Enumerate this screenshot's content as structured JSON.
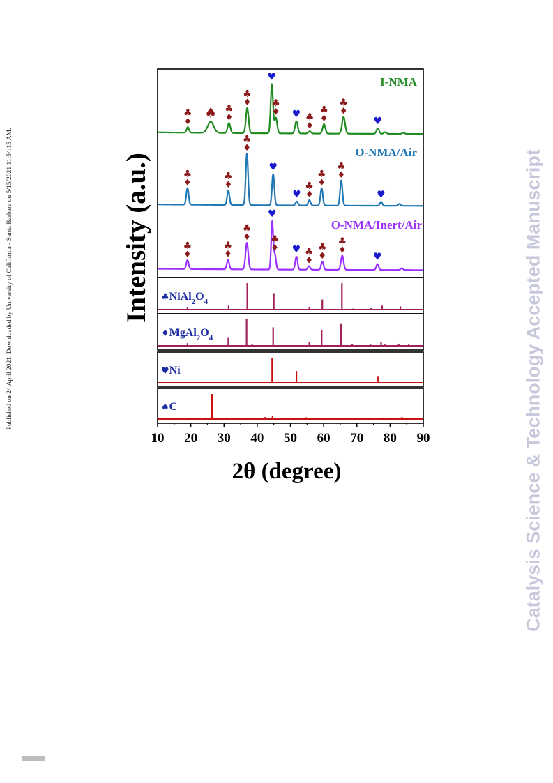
{
  "publish_note": "Published on 24 April 2021. Downloaded by University of California - Santa Barbara on 5/15/2021 11:54:15 AM.",
  "watermark": "Catalysis Science & Technology Accepted Manuscript",
  "colors": {
    "I-NMA": "#228b22",
    "O-NMA/Air": "#1f77b4",
    "O-NMA/Inert/Air": "#9b30ff",
    "reference_bars": "#a0205a",
    "reference_red": "#cc1111",
    "marker_spinel": "#8b1a1a",
    "marker_ni": "#1a1acc",
    "label_blue": "#1a2aa0"
  },
  "chart_data": {
    "type": "line",
    "xlabel": "2θ (degree)",
    "ylabel": "Intensity (a.u.)",
    "xlim": [
      10,
      90
    ],
    "xticks": [
      10,
      20,
      30,
      40,
      50,
      60,
      70,
      80,
      90
    ],
    "series": [
      {
        "name": "I-NMA",
        "color_key": "I-NMA",
        "baseline": 0.04,
        "peaks": [
          {
            "x": 19.1,
            "h": 0.1,
            "w": 0.35
          },
          {
            "x": 26.0,
            "h": 0.2,
            "w": 0.9
          },
          {
            "x": 31.5,
            "h": 0.18,
            "w": 0.4
          },
          {
            "x": 37.0,
            "h": 0.45,
            "w": 0.4
          },
          {
            "x": 44.4,
            "h": 0.88,
            "w": 0.35
          },
          {
            "x": 45.6,
            "h": 0.28,
            "w": 0.4
          },
          {
            "x": 51.8,
            "h": 0.22,
            "w": 0.4
          },
          {
            "x": 55.8,
            "h": 0.04,
            "w": 0.4
          },
          {
            "x": 60.1,
            "h": 0.17,
            "w": 0.4
          },
          {
            "x": 66.0,
            "h": 0.3,
            "w": 0.45
          },
          {
            "x": 76.3,
            "h": 0.1,
            "w": 0.4
          },
          {
            "x": 78.5,
            "h": 0.03,
            "w": 0.4
          },
          {
            "x": 84.0,
            "h": 0.02,
            "w": 0.4
          }
        ],
        "markers": [
          {
            "x": 19.1,
            "symbol": "club-diamond"
          },
          {
            "x": 26.0,
            "symbol": "spade"
          },
          {
            "x": 31.5,
            "symbol": "club-diamond"
          },
          {
            "x": 37.0,
            "symbol": "club-diamond"
          },
          {
            "x": 44.4,
            "symbol": "heart"
          },
          {
            "x": 45.6,
            "symbol": "club-diamond"
          },
          {
            "x": 51.8,
            "symbol": "heart"
          },
          {
            "x": 55.8,
            "symbol": "club-diamond"
          },
          {
            "x": 60.1,
            "symbol": "club-diamond"
          },
          {
            "x": 66.0,
            "symbol": "club-diamond"
          },
          {
            "x": 76.3,
            "symbol": "heart"
          }
        ]
      },
      {
        "name": "O-NMA/Air",
        "color_key": "O-NMA/Air",
        "baseline": 0.03,
        "peaks": [
          {
            "x": 19.0,
            "h": 0.25,
            "w": 0.35
          },
          {
            "x": 31.3,
            "h": 0.22,
            "w": 0.35
          },
          {
            "x": 36.9,
            "h": 0.78,
            "w": 0.35
          },
          {
            "x": 44.8,
            "h": 0.47,
            "w": 0.35
          },
          {
            "x": 51.9,
            "h": 0.06,
            "w": 0.35
          },
          {
            "x": 55.7,
            "h": 0.08,
            "w": 0.35
          },
          {
            "x": 59.4,
            "h": 0.26,
            "w": 0.35
          },
          {
            "x": 65.3,
            "h": 0.38,
            "w": 0.35
          },
          {
            "x": 77.3,
            "h": 0.06,
            "w": 0.35
          },
          {
            "x": 82.8,
            "h": 0.03,
            "w": 0.35
          }
        ],
        "markers": [
          {
            "x": 19.0,
            "symbol": "club-diamond"
          },
          {
            "x": 31.3,
            "symbol": "club-diamond"
          },
          {
            "x": 36.9,
            "symbol": "club-diamond"
          },
          {
            "x": 44.8,
            "symbol": "heart"
          },
          {
            "x": 51.9,
            "symbol": "heart"
          },
          {
            "x": 55.7,
            "symbol": "club-diamond"
          },
          {
            "x": 59.4,
            "symbol": "club-diamond"
          },
          {
            "x": 65.3,
            "symbol": "club-diamond"
          },
          {
            "x": 77.3,
            "symbol": "heart"
          }
        ]
      },
      {
        "name": "O-NMA/Inert/Air",
        "color_key": "O-NMA/Inert/Air",
        "baseline": 0.03,
        "peaks": [
          {
            "x": 19.0,
            "h": 0.15,
            "w": 0.35
          },
          {
            "x": 31.2,
            "h": 0.16,
            "w": 0.35
          },
          {
            "x": 36.9,
            "h": 0.45,
            "w": 0.4
          },
          {
            "x": 44.5,
            "h": 0.8,
            "w": 0.3
          },
          {
            "x": 45.3,
            "h": 0.25,
            "w": 0.35
          },
          {
            "x": 51.8,
            "h": 0.22,
            "w": 0.35
          },
          {
            "x": 55.6,
            "h": 0.06,
            "w": 0.35
          },
          {
            "x": 59.6,
            "h": 0.14,
            "w": 0.35
          },
          {
            "x": 65.6,
            "h": 0.24,
            "w": 0.4
          },
          {
            "x": 76.2,
            "h": 0.1,
            "w": 0.35
          },
          {
            "x": 83.5,
            "h": 0.03,
            "w": 0.35
          }
        ],
        "markers": [
          {
            "x": 19.0,
            "symbol": "club-diamond"
          },
          {
            "x": 31.2,
            "symbol": "club-diamond"
          },
          {
            "x": 36.9,
            "symbol": "club-diamond"
          },
          {
            "x": 44.5,
            "symbol": "heart"
          },
          {
            "x": 45.3,
            "symbol": "club-diamond"
          },
          {
            "x": 51.8,
            "symbol": "heart"
          },
          {
            "x": 55.6,
            "symbol": "club-diamond"
          },
          {
            "x": 59.6,
            "symbol": "club-diamond"
          },
          {
            "x": 65.6,
            "symbol": "club-diamond"
          },
          {
            "x": 76.2,
            "symbol": "heart"
          }
        ]
      }
    ],
    "references": [
      {
        "symbol": "club",
        "label_parts": [
          "NiAl",
          "2",
          "O",
          "4"
        ],
        "color_key": "reference_bars",
        "lines": [
          {
            "x": 19.0,
            "h": 0.08
          },
          {
            "x": 31.4,
            "h": 0.15
          },
          {
            "x": 37.0,
            "h": 1.0
          },
          {
            "x": 45.0,
            "h": 0.62
          },
          {
            "x": 55.7,
            "h": 0.1
          },
          {
            "x": 59.6,
            "h": 0.38
          },
          {
            "x": 65.5,
            "h": 1.0
          },
          {
            "x": 68.9,
            "h": 0.04
          },
          {
            "x": 74.3,
            "h": 0.05
          },
          {
            "x": 77.6,
            "h": 0.15
          },
          {
            "x": 83.1,
            "h": 0.12
          }
        ]
      },
      {
        "symbol": "diamond",
        "label_parts": [
          "MgAl",
          "2",
          "O",
          "4"
        ],
        "color_key": "reference_bars",
        "lines": [
          {
            "x": 19.0,
            "h": 0.1
          },
          {
            "x": 31.3,
            "h": 0.3
          },
          {
            "x": 36.8,
            "h": 1.0
          },
          {
            "x": 38.5,
            "h": 0.05
          },
          {
            "x": 44.8,
            "h": 0.7
          },
          {
            "x": 55.7,
            "h": 0.14
          },
          {
            "x": 59.4,
            "h": 0.6
          },
          {
            "x": 65.2,
            "h": 0.85
          },
          {
            "x": 68.6,
            "h": 0.06
          },
          {
            "x": 74.1,
            "h": 0.05
          },
          {
            "x": 77.3,
            "h": 0.14
          },
          {
            "x": 78.5,
            "h": 0.05
          },
          {
            "x": 82.6,
            "h": 0.08
          },
          {
            "x": 85.6,
            "h": 0.05
          }
        ]
      },
      {
        "symbol": "heart",
        "label_parts": [
          "Ni"
        ],
        "color_key": "reference_red",
        "lines": [
          {
            "x": 44.5,
            "h": 1.0
          },
          {
            "x": 51.8,
            "h": 0.47
          },
          {
            "x": 76.4,
            "h": 0.27
          }
        ]
      },
      {
        "symbol": "spade",
        "label_parts": [
          "C"
        ],
        "color_key": "reference_red",
        "lines": [
          {
            "x": 26.4,
            "h": 1.0
          },
          {
            "x": 42.4,
            "h": 0.08
          },
          {
            "x": 44.6,
            "h": 0.12
          },
          {
            "x": 50.7,
            "h": 0.04
          },
          {
            "x": 54.7,
            "h": 0.07
          },
          {
            "x": 59.9,
            "h": 0.03
          },
          {
            "x": 77.5,
            "h": 0.06
          },
          {
            "x": 83.6,
            "h": 0.08
          }
        ]
      }
    ]
  }
}
